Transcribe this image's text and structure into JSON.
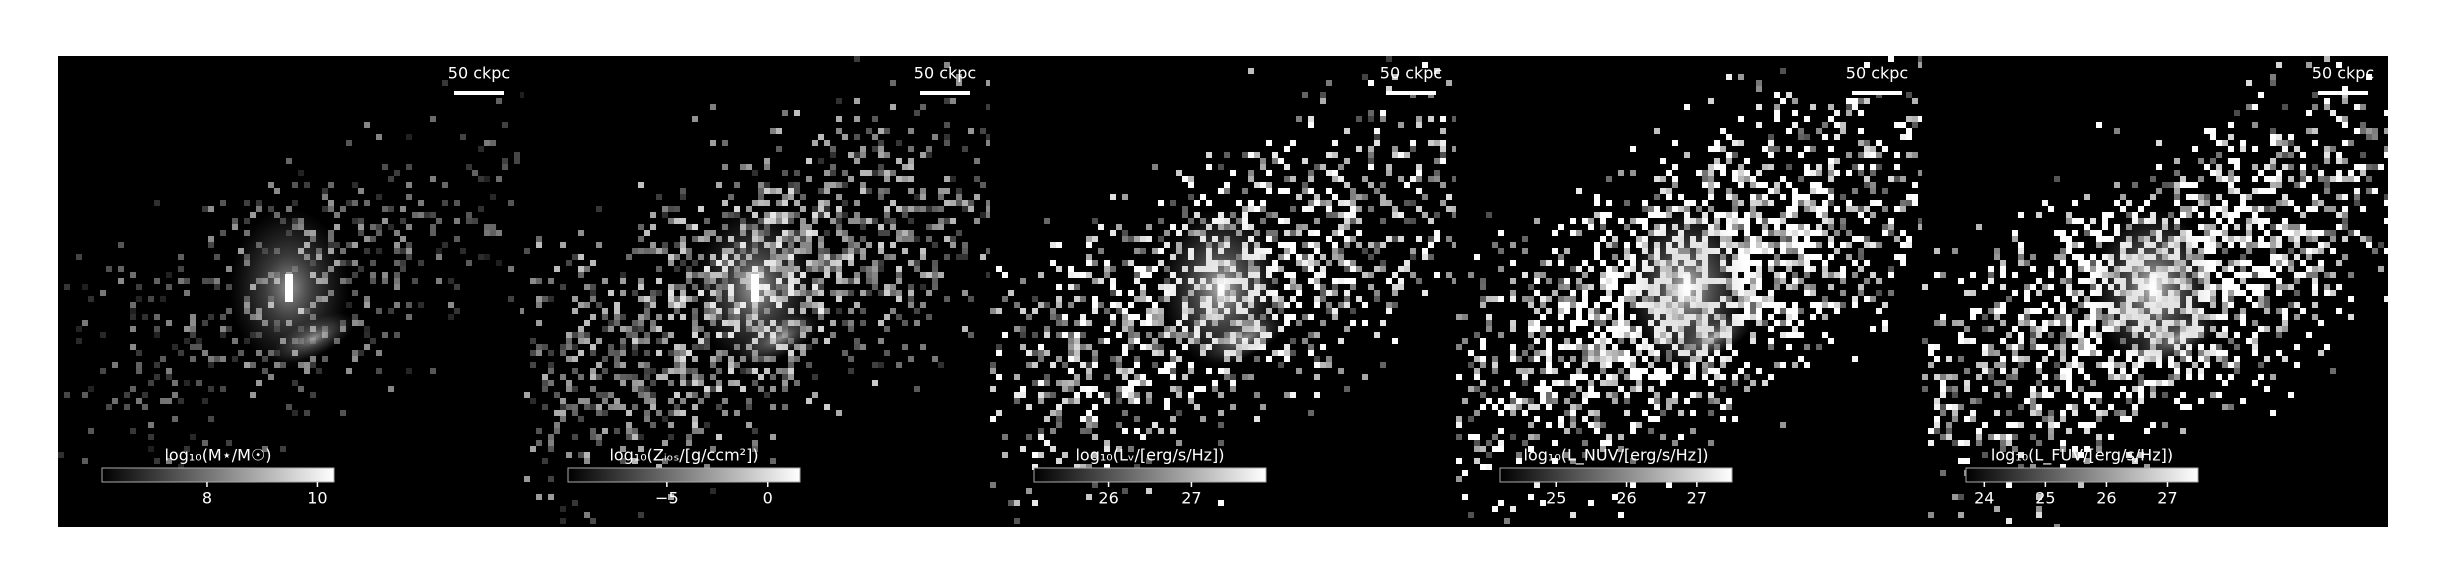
{
  "chart_data": [
    {
      "type": "image",
      "colorbar_label": "log₁₀(M⋆/M☉)",
      "clim": [
        6.1,
        10.3
      ],
      "cticks": [
        8,
        10
      ],
      "scalebar_label": "50 ckpc"
    },
    {
      "type": "image",
      "colorbar_label": "log₁₀(Zᵢₒₛ/[g/ccm²])",
      "clim": [
        -9.9,
        1.6
      ],
      "cticks": [
        {
          "value": -5,
          "label": "−5"
        },
        0
      ],
      "scalebar_label": "50 ckpc"
    },
    {
      "type": "image",
      "colorbar_label": "log₁₀(Lᵥ/[erg/s/Hz])",
      "clim": [
        25.1,
        27.9
      ],
      "cticks": [
        26,
        27
      ],
      "scalebar_label": "50 ckpc"
    },
    {
      "type": "image",
      "colorbar_label": "log₁₀(L_NUV/[erg/s/Hz])",
      "clim": [
        24.2,
        27.5
      ],
      "cticks": [
        25,
        26,
        27
      ],
      "scalebar_label": "50 ckpc"
    },
    {
      "type": "image",
      "colorbar_label": "log₁₀(L_FUV/[erg/s/Hz])",
      "clim": [
        23.7,
        27.5
      ],
      "cticks": [
        24,
        25,
        26,
        27
      ],
      "scalebar_label": "50 ckpc"
    }
  ]
}
